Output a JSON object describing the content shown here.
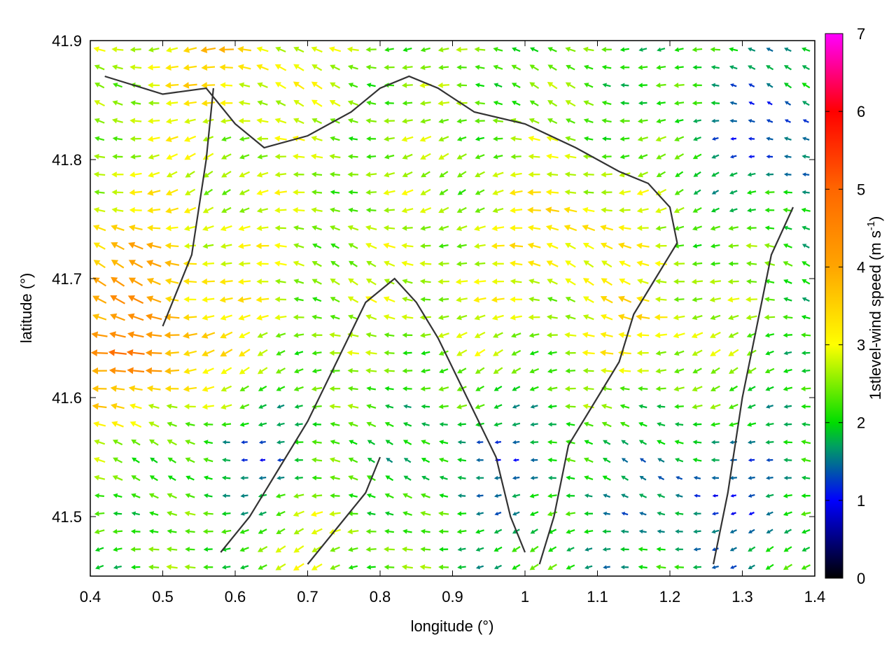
{
  "chart_data": {
    "type": "vector-field",
    "xlabel": "longitude (°)",
    "ylabel": "latitude (°)",
    "xlim": [
      0.4,
      1.4
    ],
    "ylim": [
      41.45,
      41.9
    ],
    "xticks": [
      "0.4",
      "0.5",
      "0.6",
      "0.7",
      "0.8",
      "0.9",
      "1",
      "1.1",
      "1.2",
      "1.3",
      "1.4"
    ],
    "yticks": [
      "41.5",
      "41.6",
      "41.7",
      "41.8",
      "41.9"
    ],
    "colorbar": {
      "label_main": "1stlevel-wind speed (m s",
      "label_sup": "-1",
      "label_end": ")",
      "range": [
        0,
        7
      ],
      "ticks": [
        "0",
        "1",
        "2",
        "3",
        "4",
        "5",
        "6",
        "7"
      ],
      "stops": [
        {
          "v": 0,
          "color": "#000000"
        },
        {
          "v": 1,
          "color": "#0000ff"
        },
        {
          "v": 1.7,
          "color": "#00a060"
        },
        {
          "v": 2,
          "color": "#00dd00"
        },
        {
          "v": 3,
          "color": "#ffff00"
        },
        {
          "v": 4,
          "color": "#ffa500"
        },
        {
          "v": 5,
          "color": "#ff6600"
        },
        {
          "v": 6,
          "color": "#ff0000"
        },
        {
          "v": 7,
          "color": "#ff00ff"
        }
      ]
    },
    "field": {
      "nx": 40,
      "ny": 30,
      "direction": "from-east",
      "speed_hotspots": [
        {
          "x": 0.45,
          "y": 41.7,
          "speed": 4.3
        },
        {
          "x": 0.47,
          "y": 41.64,
          "speed": 5.2
        },
        {
          "x": 0.58,
          "y": 41.89,
          "speed": 3.8
        },
        {
          "x": 1.06,
          "y": 41.74,
          "speed": 3.8
        },
        {
          "x": 1.16,
          "y": 41.66,
          "speed": 3.6
        },
        {
          "x": 0.9,
          "y": 41.68,
          "speed": 3.0
        },
        {
          "x": 0.72,
          "y": 41.48,
          "speed": 3.0
        },
        {
          "x": 0.95,
          "y": 41.55,
          "speed": 1.1
        },
        {
          "x": 1.35,
          "y": 41.82,
          "speed": 0.8
        },
        {
          "x": 0.62,
          "y": 41.55,
          "speed": 1.0
        },
        {
          "x": 1.25,
          "y": 41.52,
          "speed": 0.9
        }
      ]
    },
    "contours": [
      [
        [
          0.42,
          41.87
        ],
        [
          0.5,
          41.855
        ],
        [
          0.56,
          41.86
        ],
        [
          0.6,
          41.83
        ],
        [
          0.64,
          41.81
        ],
        [
          0.7,
          41.82
        ],
        [
          0.76,
          41.84
        ],
        [
          0.8,
          41.86
        ],
        [
          0.84,
          41.87
        ],
        [
          0.88,
          41.86
        ],
        [
          0.93,
          41.84
        ],
        [
          1.0,
          41.83
        ],
        [
          1.07,
          41.81
        ],
        [
          1.13,
          41.79
        ],
        [
          1.17,
          41.78
        ],
        [
          1.2,
          41.76
        ],
        [
          1.21,
          41.73
        ],
        [
          1.18,
          41.7
        ],
        [
          1.15,
          41.67
        ],
        [
          1.13,
          41.63
        ],
        [
          1.1,
          41.6
        ],
        [
          1.06,
          41.56
        ],
        [
          1.04,
          41.5
        ],
        [
          1.02,
          41.46
        ]
      ],
      [
        [
          0.58,
          41.47
        ],
        [
          0.62,
          41.5
        ],
        [
          0.66,
          41.54
        ],
        [
          0.7,
          41.58
        ],
        [
          0.74,
          41.63
        ],
        [
          0.78,
          41.68
        ],
        [
          0.82,
          41.7
        ],
        [
          0.85,
          41.68
        ],
        [
          0.88,
          41.65
        ],
        [
          0.92,
          41.6
        ],
        [
          0.96,
          41.55
        ],
        [
          0.98,
          41.5
        ],
        [
          1.0,
          41.47
        ]
      ],
      [
        [
          0.5,
          41.66
        ],
        [
          0.54,
          41.72
        ],
        [
          0.56,
          41.8
        ],
        [
          0.57,
          41.86
        ]
      ],
      [
        [
          0.7,
          41.46
        ],
        [
          0.74,
          41.49
        ],
        [
          0.78,
          41.52
        ],
        [
          0.8,
          41.55
        ]
      ],
      [
        [
          1.26,
          41.46
        ],
        [
          1.28,
          41.52
        ],
        [
          1.3,
          41.6
        ],
        [
          1.32,
          41.66
        ],
        [
          1.34,
          41.72
        ],
        [
          1.37,
          41.76
        ]
      ]
    ]
  }
}
